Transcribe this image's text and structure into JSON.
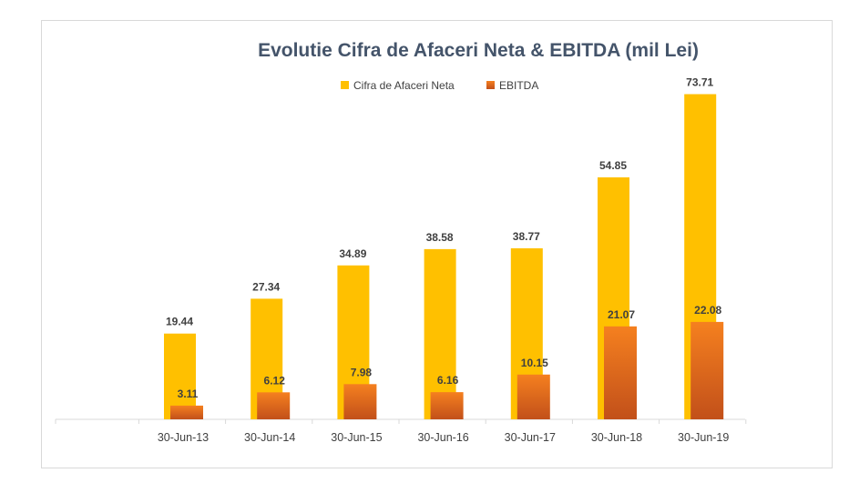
{
  "chart_data": {
    "type": "bar",
    "title": "Evolutie Cifra de Afaceri Neta & EBITDA  (mil Lei)",
    "categories": [
      "30-Jun-13",
      "30-Jun-14",
      "30-Jun-15",
      "30-Jun-16",
      "30-Jun-17",
      "30-Jun-18",
      "30-Jun-19"
    ],
    "series": [
      {
        "name": "Cifra de Afaceri Neta",
        "values": [
          19.44,
          27.34,
          34.89,
          38.58,
          38.77,
          54.85,
          73.71
        ],
        "color": "#ffc000"
      },
      {
        "name": "EBITDA",
        "values": [
          3.11,
          6.12,
          7.98,
          6.16,
          10.15,
          21.07,
          22.08
        ],
        "color": "#ed7d31"
      }
    ],
    "data_labels": [
      [
        "19.44",
        "27.34",
        "34.89",
        "38.58",
        "38.77",
        "54.85",
        "73.71"
      ],
      [
        "3.11",
        "6.12",
        "7.98",
        "6.16",
        "10.15",
        "21.07",
        "22.08"
      ]
    ],
    "ylim": [
      0,
      80
    ],
    "grid": false,
    "legend": "top-center"
  }
}
